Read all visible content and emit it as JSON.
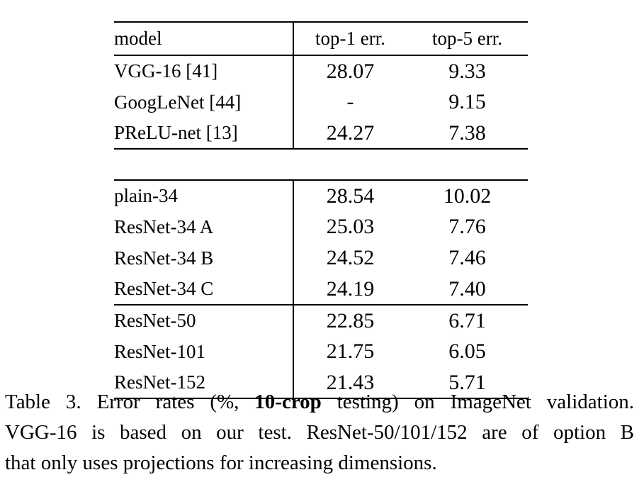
{
  "table": {
    "headers": {
      "model": "model",
      "top1": "top-1 err.",
      "top5": "top-5 err."
    },
    "sections": [
      {
        "name": "prior-work-baselines",
        "rows": [
          {
            "model": "VGG-16 [41]",
            "top1": "28.07",
            "top5": "9.33",
            "bold": false
          },
          {
            "model": "GoogLeNet [44]",
            "top1": "-",
            "top5": "9.15",
            "bold": false
          },
          {
            "model": "PReLU-net [13]",
            "top1": "24.27",
            "top5": "7.38",
            "bold": false
          }
        ]
      },
      {
        "name": "34-layer-models",
        "rows": [
          {
            "model": "plain-34",
            "top1": "28.54",
            "top5": "10.02",
            "bold": false
          },
          {
            "model": "ResNet-34 A",
            "top1": "25.03",
            "top5": "7.76",
            "bold": false
          },
          {
            "model": "ResNet-34 B",
            "top1": "24.52",
            "top5": "7.46",
            "bold": false
          },
          {
            "model": "ResNet-34 C",
            "top1": "24.19",
            "top5": "7.40",
            "bold": false
          }
        ]
      },
      {
        "name": "deeper-resnets",
        "rows": [
          {
            "model": "ResNet-50",
            "top1": "22.85",
            "top5": "6.71",
            "bold": false
          },
          {
            "model": "ResNet-101",
            "top1": "21.75",
            "top5": "6.05",
            "bold": false
          },
          {
            "model": "ResNet-152",
            "top1": "21.43",
            "top5": "5.71",
            "bold": true
          }
        ]
      }
    ]
  },
  "caption": {
    "line1_pre": "Table 3. Error rates (%, ",
    "line1_bold": "10-crop",
    "line1_post": " testing) on ImageNet validation.",
    "line2": "VGG-16 is based on our test. ResNet-50/101/152 are of option B",
    "line3": "that only uses projections for increasing dimensions."
  },
  "colors": {
    "text": "#000000",
    "background": "#ffffff",
    "rule": "#000000"
  }
}
